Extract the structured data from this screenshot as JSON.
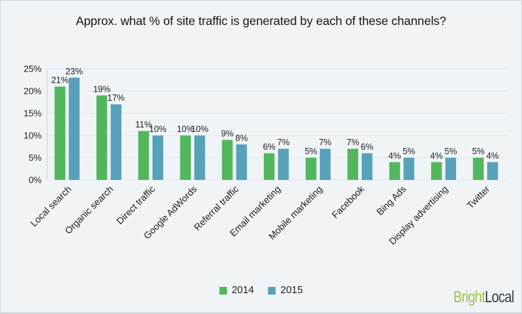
{
  "title": "Approx. what % of site traffic is generated by each of these channels?",
  "chart_data": {
    "type": "bar",
    "title": "Approx. what % of site traffic is generated by each of these channels?",
    "categories": [
      "Local search",
      "Organic search",
      "Direct traffic",
      "Google AdWords",
      "Referral traffic",
      "Email marketing",
      "Mobile marketing",
      "Facebook",
      "Bing Ads",
      "Display advertising",
      "Twitter"
    ],
    "series": [
      {
        "name": "2014",
        "color": "#52b75c",
        "values": [
          21,
          19,
          11,
          10,
          9,
          6,
          5,
          7,
          4,
          4,
          5
        ]
      },
      {
        "name": "2015",
        "color": "#57a1ba",
        "values": [
          23,
          17,
          10,
          10,
          8,
          7,
          7,
          6,
          5,
          5,
          4
        ]
      }
    ],
    "value_label_suffix": "%",
    "xlabel": "",
    "ylabel": "",
    "ylim": [
      0,
      25
    ],
    "yticks": [
      {
        "value": 0,
        "label": "0%"
      },
      {
        "value": 5,
        "label": "5%"
      },
      {
        "value": 10,
        "label": "10%"
      },
      {
        "value": 15,
        "label": "15%"
      },
      {
        "value": 20,
        "label": "20%"
      },
      {
        "value": 25,
        "label": "25%"
      }
    ],
    "grid": true,
    "legend_position": "bottom"
  },
  "colors": {
    "background": "#f0f4f7",
    "gridline": "#dde3e8",
    "axis": "#c8d0d6",
    "text": "#1c1c1c",
    "series_2014": "#52b75c",
    "series_2015": "#57a1ba"
  },
  "branding": {
    "primary": "Bright",
    "secondary": "Local",
    "primary_color": "#9cc24e",
    "secondary_color": "#333e49"
  }
}
